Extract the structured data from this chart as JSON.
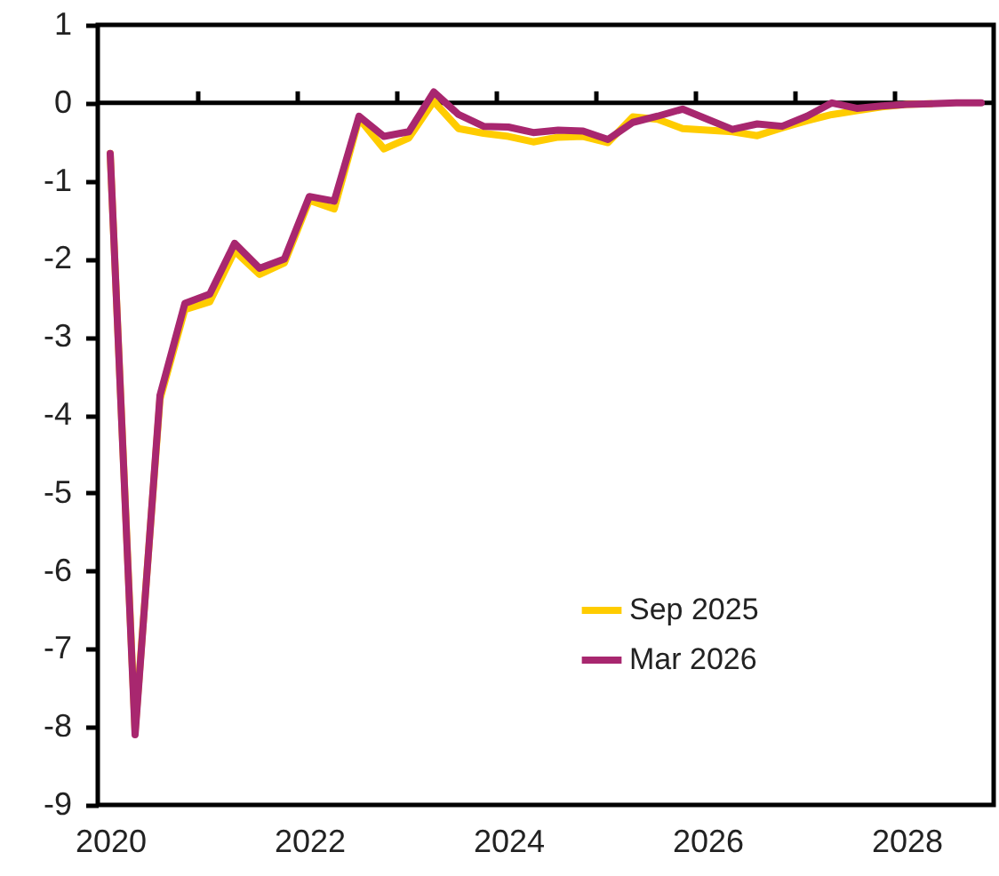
{
  "chart_data": {
    "type": "line",
    "x": [
      2020,
      2020.25,
      2020.5,
      2020.75,
      2021,
      2021.25,
      2021.5,
      2021.75,
      2022,
      2022.25,
      2022.5,
      2022.75,
      2023,
      2023.25,
      2023.5,
      2023.75,
      2024,
      2024.25,
      2024.5,
      2024.75,
      2025,
      2025.25,
      2025.5,
      2025.75,
      2026,
      2026.25,
      2026.5,
      2026.75,
      2027,
      2027.25,
      2027.5,
      2027.75,
      2028,
      2028.25,
      2028.5,
      2028.75
    ],
    "series": [
      {
        "name": "Sep 2025",
        "color": "#ffcc00",
        "values": [
          -0.65,
          -8.05,
          -3.8,
          -2.65,
          -2.55,
          -1.9,
          -2.2,
          -2.05,
          -1.25,
          -1.36,
          -0.2,
          -0.59,
          -0.45,
          0.02,
          -0.33,
          -0.39,
          -0.43,
          -0.5,
          -0.44,
          -0.43,
          -0.51,
          -0.18,
          -0.21,
          -0.33,
          -0.35,
          -0.37,
          -0.42,
          -0.32,
          -0.23,
          -0.15,
          -0.1,
          -0.05,
          -0.02,
          -0.01,
          null,
          null
        ]
      },
      {
        "name": "Mar 2026",
        "color": "#a8276f",
        "values": [
          -0.65,
          -8.1,
          -3.75,
          -2.57,
          -2.45,
          -1.8,
          -2.12,
          -2.0,
          -1.2,
          -1.26,
          -0.17,
          -0.43,
          -0.37,
          0.14,
          -0.15,
          -0.3,
          -0.31,
          -0.38,
          -0.35,
          -0.36,
          -0.47,
          -0.25,
          -0.17,
          -0.08,
          -0.21,
          -0.34,
          -0.27,
          -0.3,
          -0.17,
          0.0,
          -0.07,
          -0.04,
          -0.02,
          -0.01,
          0,
          0
        ]
      }
    ],
    "xlim": [
      2019.875,
      2028.875
    ],
    "xticks": [
      2020,
      2022,
      2024,
      2026,
      2028,
      {
        "value": 2020.875,
        "label": null
      },
      {
        "value": 2021.875,
        "label": null
      },
      {
        "value": 2022.875,
        "label": null
      },
      {
        "value": 2023.875,
        "label": null
      },
      {
        "value": 2024.875,
        "label": null
      },
      {
        "value": 2025.875,
        "label": null
      },
      {
        "value": 2026.875,
        "label": null
      },
      {
        "value": 2027.875,
        "label": null
      }
    ],
    "ylim": [
      -9,
      1
    ],
    "yticks": [
      -9,
      -8,
      -7,
      -6,
      -5,
      -4,
      -3,
      -2,
      -1,
      0,
      1
    ],
    "ref_lines": [
      {
        "axis": "y",
        "value": 0,
        "color": "#000000"
      }
    ],
    "grid": false,
    "legend": "bottom right",
    "line_style": "solid",
    "marker": "none"
  }
}
